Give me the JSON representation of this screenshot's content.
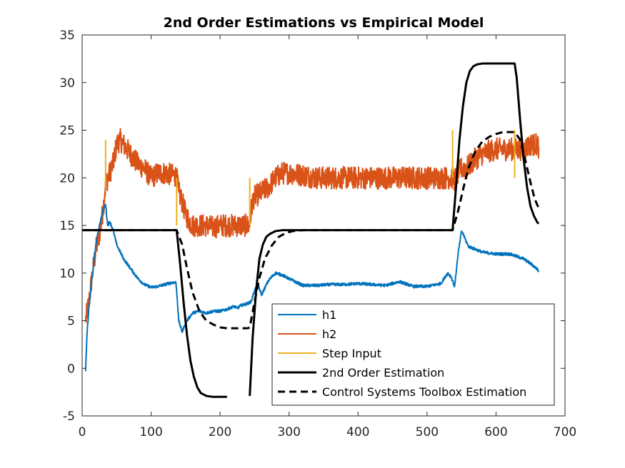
{
  "chart_data": {
    "type": "line",
    "title": "2nd Order Estimations vs Empirical Model",
    "xlabel": "",
    "ylabel": "",
    "xlim": [
      0,
      700
    ],
    "ylim": [
      -5,
      35
    ],
    "xticks": [
      0,
      100,
      200,
      300,
      400,
      500,
      600,
      700
    ],
    "yticks": [
      -5,
      0,
      5,
      10,
      15,
      20,
      25,
      30,
      35
    ],
    "grid": false,
    "legend_position": "bottom-right",
    "series": [
      {
        "name": "h1",
        "color": "#0072BD",
        "style": "solid",
        "noise": 0.15,
        "x": [
          5,
          7,
          10,
          15,
          20,
          25,
          30,
          34,
          37,
          40,
          45,
          50,
          60,
          70,
          80,
          90,
          100,
          110,
          120,
          130,
          136,
          138,
          140,
          145,
          150,
          160,
          170,
          180,
          190,
          200,
          210,
          220,
          225,
          230,
          240,
          245,
          250,
          255,
          260,
          270,
          280,
          290,
          300,
          320,
          340,
          360,
          380,
          400,
          420,
          440,
          460,
          480,
          500,
          520,
          530,
          535,
          538,
          540,
          545,
          550,
          552,
          555,
          560,
          580,
          600,
          620,
          640,
          650,
          660,
          662
        ],
        "y": [
          -0.3,
          3.5,
          6.5,
          10,
          13,
          15,
          16.5,
          17.2,
          15,
          15.4,
          14.5,
          13,
          11.5,
          10.5,
          9.5,
          8.8,
          8.5,
          8.6,
          8.8,
          9.0,
          9.0,
          7.2,
          5,
          3.8,
          4.8,
          5.8,
          6.0,
          5.8,
          6.0,
          6.0,
          6.2,
          6.5,
          6.3,
          6.6,
          6.8,
          7.0,
          8.2,
          8.8,
          7.7,
          9.2,
          10.0,
          9.8,
          9.4,
          8.7,
          8.7,
          8.8,
          8.8,
          8.9,
          8.8,
          8.7,
          9.1,
          8.6,
          8.6,
          8.9,
          10.0,
          9.6,
          9.0,
          8.6,
          12.0,
          14.4,
          14.2,
          13.6,
          12.8,
          12.2,
          12.0,
          12.0,
          11.5,
          11.0,
          10.4,
          10.1
        ]
      },
      {
        "name": "h2",
        "color": "#D95319",
        "style": "solid",
        "noise": 1.2,
        "x": [
          5,
          10,
          15,
          20,
          25,
          30,
          33,
          35,
          40,
          45,
          50,
          55,
          60,
          70,
          80,
          90,
          100,
          110,
          120,
          130,
          137,
          140,
          145,
          150,
          155,
          160,
          170,
          180,
          190,
          200,
          210,
          220,
          230,
          240,
          243,
          245,
          248,
          250,
          260,
          270,
          280,
          290,
          300,
          320,
          340,
          360,
          380,
          400,
          420,
          440,
          460,
          480,
          500,
          520,
          530,
          537,
          540,
          545,
          550,
          560,
          570,
          580,
          590,
          600,
          620,
          640,
          650,
          660,
          662
        ],
        "y": [
          5,
          7,
          10,
          12.5,
          14,
          16.5,
          18.5,
          19.5,
          20.5,
          21.5,
          23.5,
          24,
          23.5,
          22.5,
          21.5,
          21,
          20,
          20.5,
          20.5,
          20.3,
          20.2,
          18.5,
          17.5,
          16.2,
          15.5,
          15.0,
          15.0,
          15.0,
          14.8,
          15.0,
          15.0,
          15.0,
          15.0,
          15.0,
          15.0,
          16.5,
          17.8,
          18.0,
          18.5,
          19.0,
          20.0,
          20.5,
          20.5,
          20.3,
          20.0,
          20.0,
          20.0,
          20.0,
          20.0,
          20.0,
          20.0,
          20.0,
          20.0,
          20.0,
          20.0,
          20.0,
          19.8,
          20.5,
          21.0,
          21.2,
          22.0,
          22.5,
          22.8,
          23.0,
          23.0,
          23.0,
          23.5,
          23.5,
          23.2
        ]
      },
      {
        "name": "Step Input",
        "color": "#EDB120",
        "style": "solid",
        "noise": 0,
        "x": [
          34,
          34,
          34,
          137,
          137,
          137,
          243,
          243,
          243,
          537,
          537,
          537,
          627,
          627,
          627
        ],
        "y": [
          null,
          19,
          24,
          null,
          15,
          20,
          null,
          15,
          20,
          null,
          20,
          25,
          null,
          20,
          25
        ]
      },
      {
        "name": "2nd Order Estimation",
        "color": "#000000",
        "style": "solid",
        "noise": 0,
        "x": [
          0,
          40,
          80,
          120,
          137,
          142,
          147,
          152,
          157,
          162,
          167,
          172,
          180,
          190,
          200,
          210,
          null,
          243,
          247,
          252,
          257,
          262,
          267,
          272,
          280,
          290,
          300,
          320,
          340,
          380,
          420,
          460,
          500,
          537,
          542,
          547,
          552,
          557,
          562,
          567,
          572,
          580,
          590,
          600,
          620,
          627,
          630,
          635,
          640,
          645,
          650,
          655,
          660,
          662
        ],
        "y": [
          14.5,
          14.5,
          14.5,
          14.5,
          14.5,
          11,
          7,
          3.5,
          0.8,
          -0.9,
          -2.0,
          -2.6,
          -2.9,
          -3.0,
          -3.0,
          -3.0,
          null,
          -2.9,
          3,
          8,
          11.5,
          13.0,
          13.8,
          14.1,
          14.4,
          14.5,
          14.5,
          14.5,
          14.5,
          14.5,
          14.5,
          14.5,
          14.5,
          14.5,
          19,
          24,
          27.5,
          30,
          31.2,
          31.7,
          31.9,
          32,
          32,
          32,
          32,
          32,
          30.5,
          26,
          22,
          19,
          17,
          16,
          15.3,
          15.2
        ]
      },
      {
        "name": "Control Systems Toolbox Estimation",
        "color": "#000000",
        "style": "dashed",
        "noise": 0,
        "x": [
          0,
          40,
          80,
          120,
          137,
          145,
          152,
          160,
          170,
          180,
          190,
          200,
          210,
          220,
          230,
          240,
          243,
          250,
          257,
          265,
          275,
          285,
          295,
          305,
          320,
          340,
          380,
          420,
          460,
          500,
          537,
          545,
          553,
          560,
          570,
          580,
          590,
          600,
          610,
          620,
          627,
          635,
          642,
          650,
          656,
          662
        ],
        "y": [
          14.5,
          14.5,
          14.5,
          14.5,
          14.5,
          13,
          10.5,
          8.0,
          6.0,
          5.0,
          4.6,
          4.3,
          4.2,
          4.2,
          4.2,
          4.2,
          4.3,
          7.0,
          9.5,
          11.5,
          12.9,
          13.8,
          14.2,
          14.4,
          14.5,
          14.5,
          14.5,
          14.5,
          14.5,
          14.5,
          14.5,
          16.5,
          19.0,
          21.0,
          22.8,
          23.8,
          24.3,
          24.6,
          24.8,
          24.8,
          24.8,
          24.0,
          22.0,
          19.5,
          17.8,
          16.8
        ]
      }
    ]
  }
}
